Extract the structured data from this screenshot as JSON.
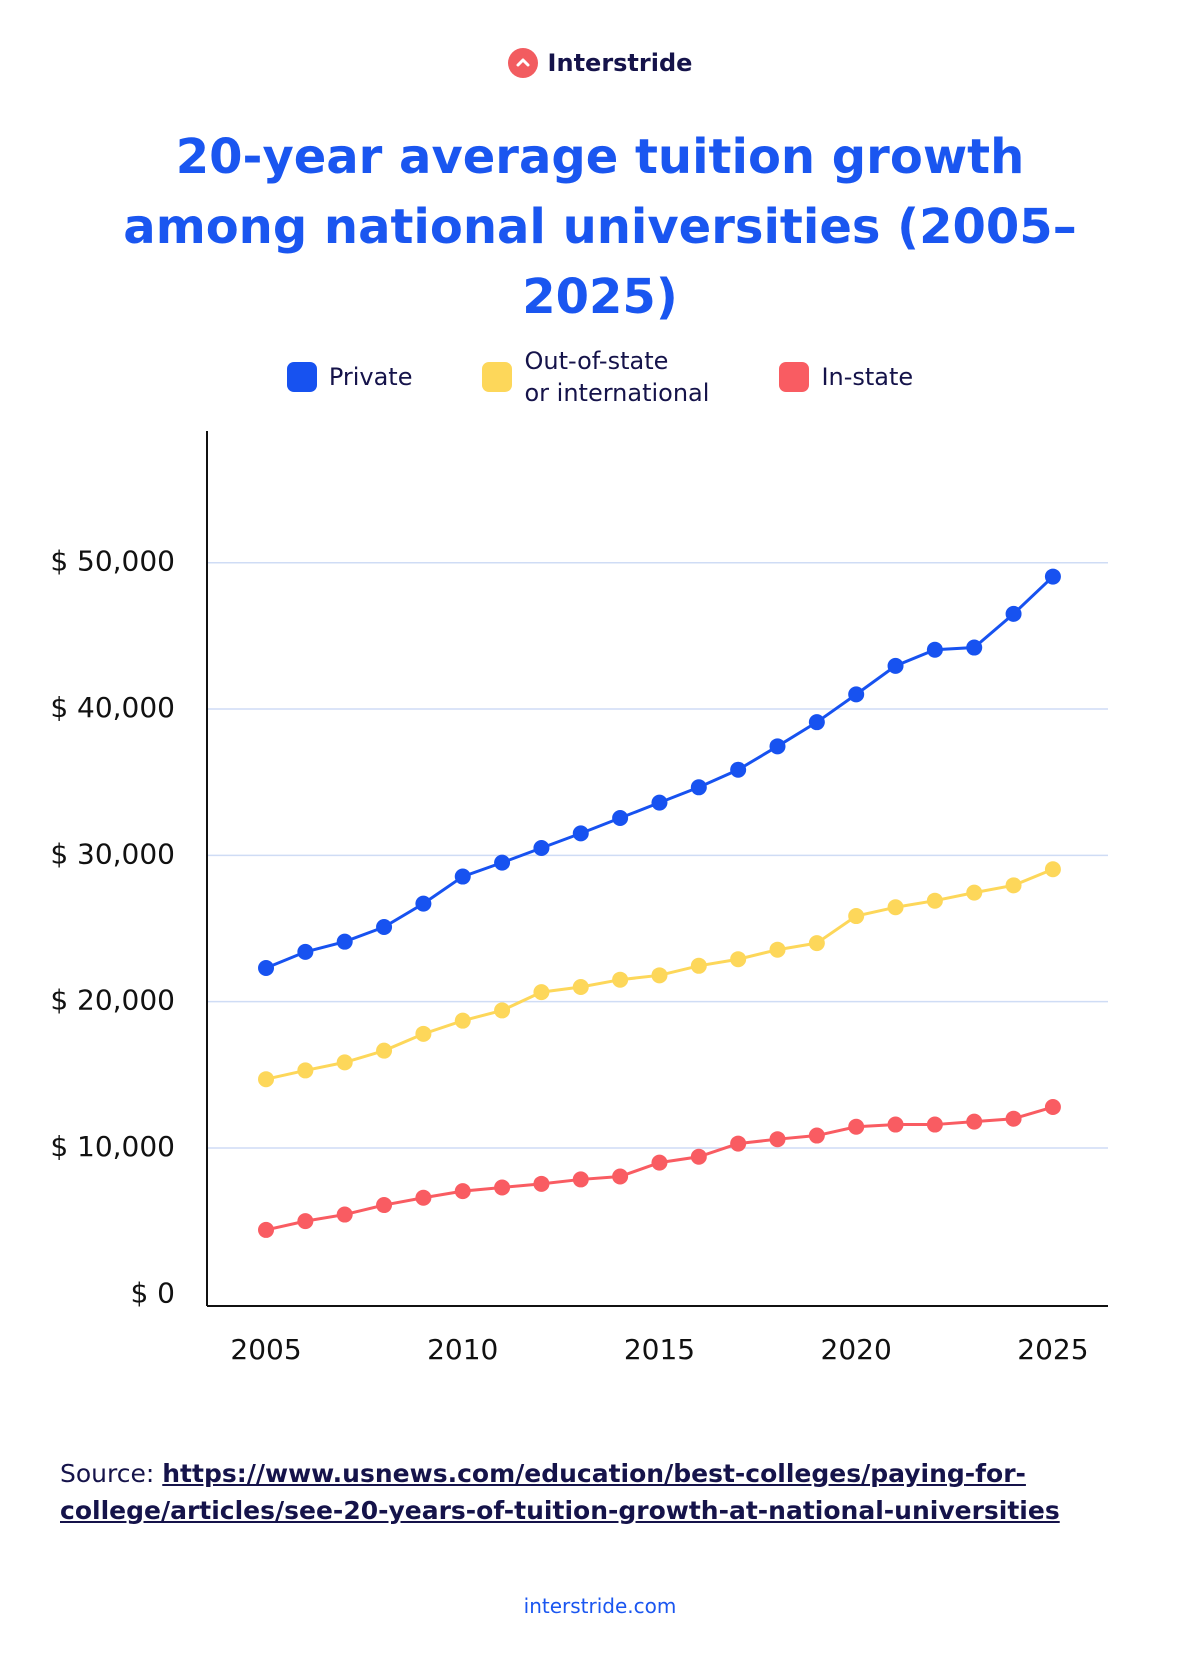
{
  "brand": "Interstride",
  "chart_data": {
    "type": "line",
    "title": "20-year average tuition growth among national universities (2005–2025)",
    "x": [
      2005,
      2006,
      2007,
      2008,
      2009,
      2010,
      2011,
      2012,
      2013,
      2014,
      2015,
      2016,
      2017,
      2018,
      2019,
      2020,
      2021,
      2022,
      2023,
      2024,
      2025
    ],
    "series": [
      {
        "name": "Private",
        "color": "#1752f0",
        "values": [
          22300,
          23400,
          24100,
          25100,
          26700,
          28550,
          29500,
          30500,
          31500,
          32550,
          33600,
          34650,
          35850,
          37450,
          39100,
          41000,
          42950,
          44050,
          44200,
          46500,
          49050
        ]
      },
      {
        "name": "Out-of-state\nor international",
        "color": "#fdd75a",
        "values": [
          14700,
          15300,
          15850,
          16650,
          17800,
          18700,
          19400,
          20650,
          21000,
          21500,
          21800,
          22450,
          22900,
          23550,
          24000,
          25850,
          26450,
          26900,
          27450,
          27950,
          29050
        ]
      },
      {
        "name": "In-state",
        "color": "#f95c62",
        "values": [
          4400,
          5000,
          5450,
          6100,
          6600,
          7050,
          7300,
          7550,
          7850,
          8050,
          9000,
          9400,
          10300,
          10600,
          10850,
          11450,
          11600,
          11600,
          11800,
          12000,
          12800
        ]
      }
    ],
    "xlim": [
      2003.5,
      2026.4
    ],
    "xticks": [
      2005,
      2010,
      2015,
      2020,
      2025
    ],
    "ylim": [
      -800,
      59000
    ],
    "yticks": [
      {
        "value": 0,
        "label": "$ 0"
      },
      {
        "value": 10000,
        "label": "$ 10,000"
      },
      {
        "value": 20000,
        "label": "$ 20,000"
      },
      {
        "value": 30000,
        "label": "$ 30,000"
      },
      {
        "value": 40000,
        "label": "$ 40,000"
      },
      {
        "value": 50000,
        "label": "$ 50,000"
      }
    ],
    "grid": true
  },
  "source": {
    "label": "Source:",
    "link": "https://www.usnews.com/education/best-colleges/paying-for-college/articles/see-20-years-of-tuition-growth-at-national-universities"
  },
  "footer": "interstride.com"
}
